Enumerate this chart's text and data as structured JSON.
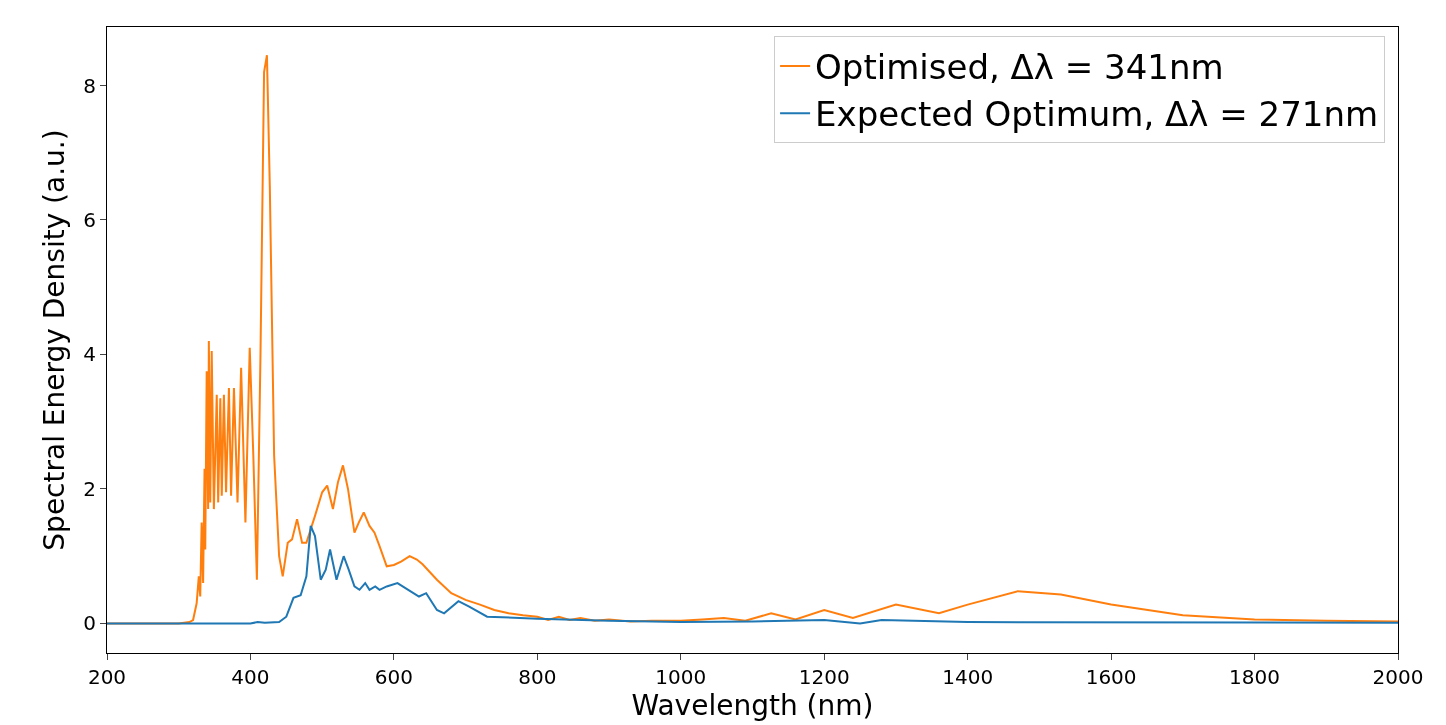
{
  "chart_data": {
    "type": "line",
    "xlabel": "Wavelength (nm)",
    "ylabel": "Spectral Energy Density (a.u.)",
    "xlim": [
      200,
      2000
    ],
    "xticks": [
      200,
      400,
      600,
      800,
      1000,
      1200,
      1400,
      1600,
      1800,
      2000
    ],
    "ylim": [
      -0.44,
      8.87
    ],
    "yticks": [
      0,
      2,
      4,
      6,
      8
    ],
    "legend": "top right",
    "marker": "none",
    "line_style": "solid",
    "series": [
      {
        "name": "Optimised, Δλ = 341nm",
        "color": "#ff7f0e",
        "x": [
          200,
          250,
          300,
          315,
          320,
          325,
          328,
          330,
          332,
          334,
          336,
          337,
          339,
          341,
          342,
          344,
          346,
          349,
          353,
          355,
          358,
          360,
          363,
          366,
          370,
          373,
          377,
          382,
          387,
          393,
          399,
          404,
          409,
          414,
          419,
          423,
          427,
          433,
          440,
          445,
          452,
          458,
          465,
          472,
          478,
          490,
          500,
          507,
          515,
          522,
          529,
          536,
          545,
          551,
          558,
          566,
          573,
          580,
          590,
          600,
          610,
          622,
          632,
          640,
          660,
          680,
          700,
          720,
          740,
          760,
          780,
          800,
          815,
          830,
          845,
          860,
          880,
          900,
          930,
          960,
          1000,
          1030,
          1060,
          1090,
          1126,
          1160,
          1200,
          1240,
          1300,
          1360,
          1400,
          1470,
          1530,
          1600,
          1700,
          1800,
          1900,
          2000
        ],
        "values": [
          0,
          0,
          0,
          0.02,
          0.05,
          0.3,
          0.7,
          0.4,
          1.5,
          0.6,
          2.3,
          1.1,
          3.75,
          1.7,
          4.2,
          1.8,
          4.05,
          1.7,
          3.4,
          1.8,
          3.35,
          1.9,
          3.4,
          1.95,
          3.5,
          1.9,
          3.5,
          1.8,
          3.8,
          1.5,
          4.1,
          2.5,
          0.65,
          4.0,
          8.2,
          8.45,
          6.5,
          2.5,
          1.0,
          0.7,
          1.2,
          1.25,
          1.55,
          1.2,
          1.2,
          1.6,
          1.95,
          2.05,
          1.7,
          2.1,
          2.35,
          2.0,
          1.35,
          1.5,
          1.65,
          1.45,
          1.35,
          1.15,
          0.85,
          0.87,
          0.92,
          1.0,
          0.95,
          0.88,
          0.65,
          0.45,
          0.35,
          0.28,
          0.2,
          0.15,
          0.12,
          0.1,
          0.05,
          0.1,
          0.05,
          0.08,
          0.04,
          0.06,
          0.03,
          0.04,
          0.04,
          0.06,
          0.08,
          0.04,
          0.15,
          0.06,
          0.2,
          0.08,
          0.28,
          0.15,
          0.28,
          0.48,
          0.43,
          0.28,
          0.12,
          0.06,
          0.04,
          0.03
        ]
      },
      {
        "name": "Expected Optimum, Δλ = 271nm",
        "color": "#1f77b4",
        "x": [
          200,
          300,
          400,
          410,
          420,
          440,
          450,
          460,
          470,
          478,
          484,
          490,
          498,
          505,
          511,
          520,
          530,
          537,
          545,
          552,
          560,
          566,
          574,
          580,
          590,
          605,
          620,
          635,
          645,
          660,
          670,
          690,
          705,
          730,
          800,
          900,
          1000,
          1100,
          1200,
          1250,
          1280,
          1400,
          2000
        ],
        "values": [
          0,
          0,
          0,
          0.02,
          0.01,
          0.02,
          0.1,
          0.38,
          0.42,
          0.7,
          1.45,
          1.3,
          0.65,
          0.8,
          1.1,
          0.65,
          1.0,
          0.8,
          0.55,
          0.5,
          0.6,
          0.5,
          0.55,
          0.5,
          0.55,
          0.6,
          0.5,
          0.4,
          0.45,
          0.2,
          0.15,
          0.33,
          0.25,
          0.1,
          0.07,
          0.04,
          0.02,
          0.03,
          0.05,
          0.0,
          0.05,
          0.02,
          0.01
        ]
      }
    ]
  }
}
